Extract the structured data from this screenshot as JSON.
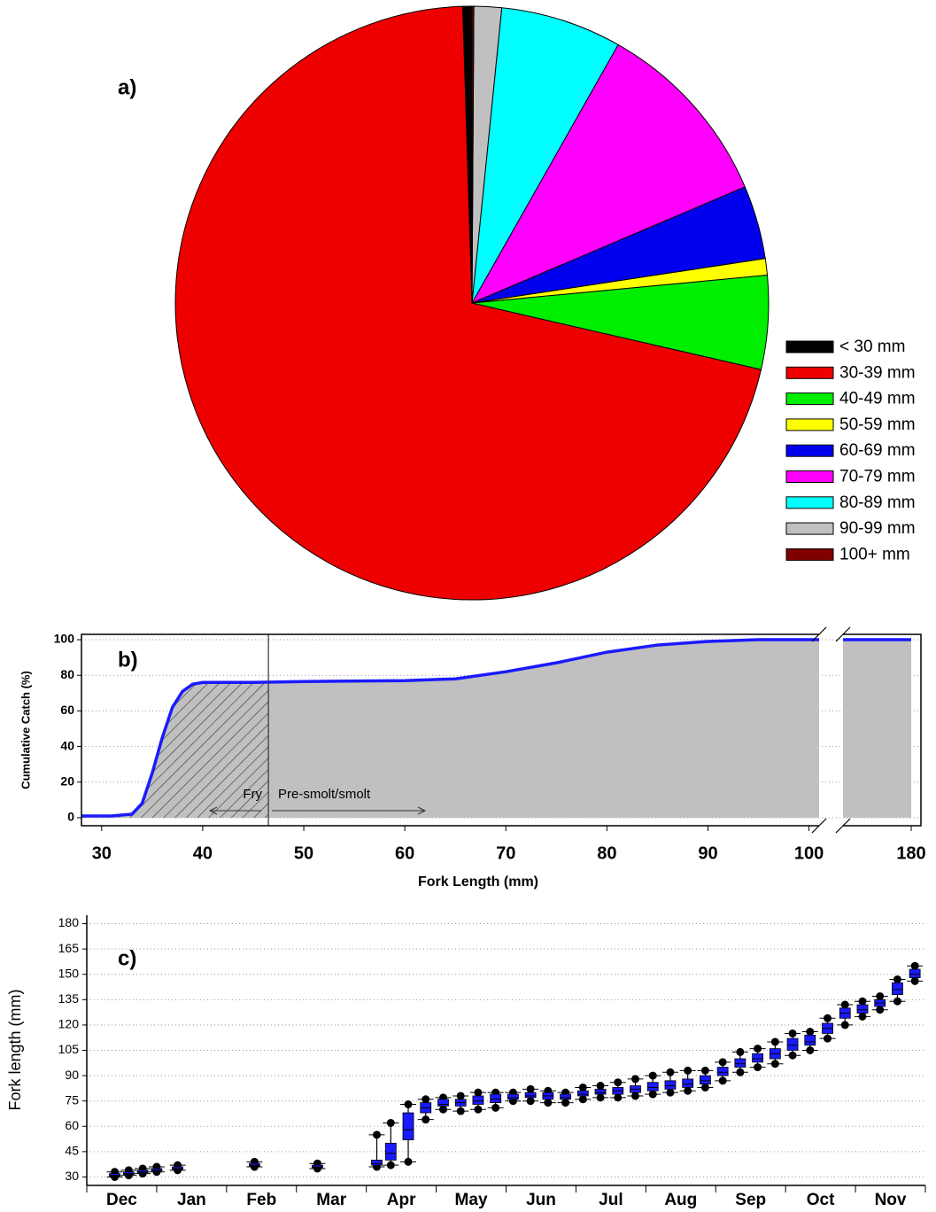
{
  "chart_data": [
    {
      "type": "pie",
      "title": "a)",
      "categories": [
        "< 30 mm",
        "30-39 mm",
        "40-49 mm",
        "50-59 mm",
        "60-69 mm",
        "70-79 mm",
        "80-89 mm",
        "90-99 mm",
        "100+ mm"
      ],
      "values": [
        0.5,
        70.9,
        5.1,
        0.9,
        4.0,
        10.4,
        6.6,
        1.5,
        0.1
      ],
      "colors": [
        "#000000",
        "#ee0000",
        "#00ee00",
        "#ffff00",
        "#0000ee",
        "#ff00ff",
        "#00ffff",
        "#c0c0c0",
        "#800000"
      ]
    },
    {
      "type": "area",
      "title": "b)",
      "x": [
        28,
        31,
        33,
        34,
        35,
        36,
        37,
        38,
        39,
        40,
        45,
        50,
        60,
        65,
        70,
        75,
        80,
        85,
        90,
        95,
        101
      ],
      "values": [
        1,
        1,
        2,
        8,
        25,
        45,
        62,
        71,
        75,
        76,
        76,
        76.5,
        77,
        78,
        82,
        87,
        93,
        97,
        99,
        100,
        100
      ],
      "break_x": [
        173,
        180
      ],
      "break_values": [
        100,
        100
      ],
      "xlim": [
        28,
        101
      ],
      "xticks": [
        30,
        40,
        50,
        60,
        70,
        80,
        90,
        100
      ],
      "break_xlim": [
        173,
        181
      ],
      "break_xticks": [
        180
      ],
      "ylim": [
        -4.5,
        103
      ],
      "yticks": [
        0,
        20,
        40,
        60,
        80,
        100
      ],
      "xlabel": "Fork Length (mm)",
      "ylabel": "Cumulative Catch (%)",
      "color": "#1a1aff",
      "fill_color": "#c0c0c0",
      "grid": true,
      "divider_x": 46.5,
      "annotations": [
        "Fry",
        "Pre-smolt/smolt"
      ]
    },
    {
      "type": "box",
      "title": "c)",
      "ylabel": "Fork length (mm)",
      "categories": [
        "Dec",
        "Jan",
        "Feb",
        "Mar",
        "Apr",
        "May",
        "Jun",
        "Jul",
        "Aug",
        "Sep",
        "Oct",
        "Nov"
      ],
      "xlim": [
        0,
        12
      ],
      "xticks": [
        0,
        1,
        2,
        3,
        4,
        5,
        6,
        7,
        8,
        9,
        10,
        11,
        12
      ],
      "ylim": [
        25,
        185
      ],
      "yticks": [
        30,
        45,
        60,
        75,
        90,
        105,
        120,
        135,
        150,
        165,
        180
      ],
      "color": "#1a1aff",
      "grid": true,
      "boxes": {
        "x": [
          0.4,
          0.6,
          0.8,
          1.0,
          1.3,
          2.4,
          3.3,
          4.15,
          4.35,
          4.6,
          4.85,
          5.1,
          5.35,
          5.6,
          5.85,
          6.1,
          6.35,
          6.6,
          6.85,
          7.1,
          7.35,
          7.6,
          7.85,
          8.1,
          8.35,
          8.6,
          8.85,
          9.1,
          9.35,
          9.6,
          9.85,
          10.1,
          10.35,
          10.6,
          10.85,
          11.1,
          11.35,
          11.6,
          11.85
        ],
        "low": [
          30,
          31,
          32,
          33,
          34,
          36,
          35,
          36,
          37,
          39,
          64,
          70,
          69,
          70,
          71,
          75,
          75,
          74,
          74,
          76,
          77,
          77,
          78,
          79,
          80,
          81,
          83,
          87,
          92,
          95,
          97,
          102,
          105,
          112,
          120,
          125,
          129,
          134,
          146
        ],
        "q1": [
          30.5,
          31.5,
          32.5,
          33.5,
          34.5,
          36.5,
          35.5,
          37,
          40,
          52,
          68,
          72,
          72,
          73,
          74,
          76,
          77,
          76,
          76,
          78,
          79,
          79,
          80,
          81,
          82,
          83,
          85,
          90,
          95,
          98,
          100,
          105,
          108,
          115,
          124,
          127,
          131,
          138,
          148
        ],
        "median": [
          31,
          32,
          33,
          34,
          35,
          37,
          36,
          38,
          44,
          58,
          71,
          73,
          74,
          75,
          76,
          77,
          78,
          78,
          77,
          79,
          80,
          81,
          82,
          83,
          84,
          85,
          87,
          92,
          97,
          100,
          103,
          108,
          110,
          118,
          127,
          129,
          133,
          141,
          150
        ],
        "q3": [
          32,
          33,
          34,
          35,
          36,
          38,
          37,
          40,
          50,
          68,
          74,
          76,
          76,
          78,
          79,
          79,
          80,
          80,
          79,
          81,
          82,
          83,
          84,
          86,
          87,
          88,
          90,
          95,
          100,
          103,
          106,
          112,
          114,
          121,
          130,
          132,
          135,
          145,
          153
        ],
        "high": [
          33,
          34,
          35,
          36,
          37,
          39,
          38,
          55,
          62,
          73,
          76,
          77,
          78,
          80,
          80,
          80,
          82,
          81,
          80,
          83,
          84,
          86,
          88,
          90,
          92,
          93,
          93,
          98,
          104,
          106,
          110,
          115,
          116,
          124,
          132,
          134,
          137,
          147,
          155
        ]
      }
    }
  ]
}
